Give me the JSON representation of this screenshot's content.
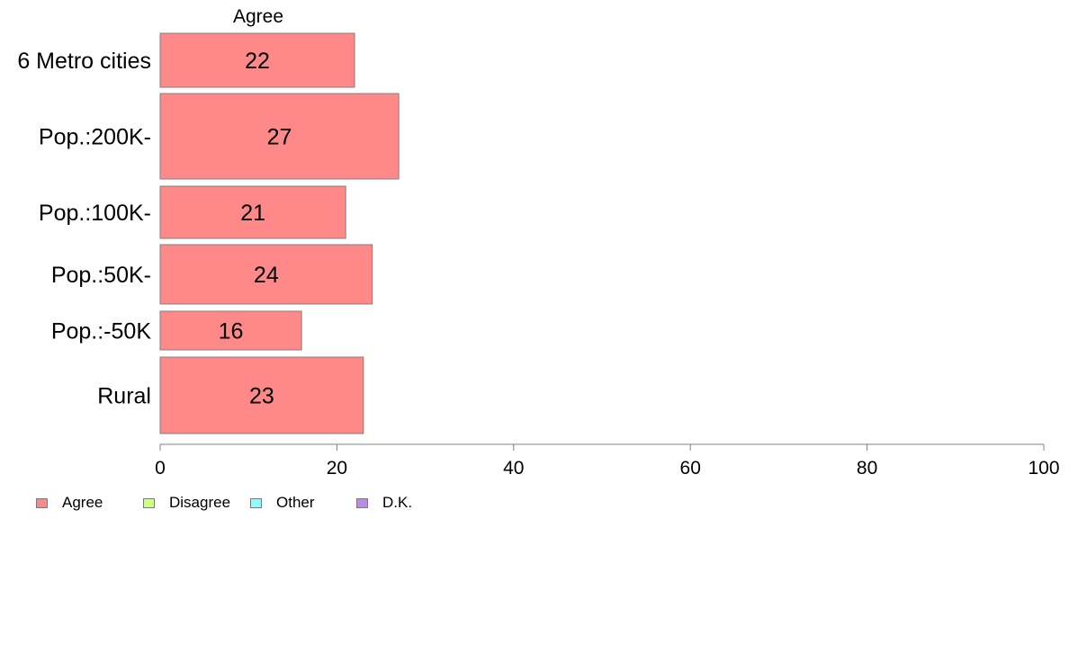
{
  "chart_data": {
    "type": "bar",
    "orientation": "horizontal",
    "column_title": "Agree",
    "categories": [
      "6 Metro cities",
      "Pop.:200K-",
      "Pop.:100K-",
      "Pop.:50K-",
      "Pop.:-50K",
      "Rural"
    ],
    "series": [
      {
        "name": "Agree",
        "values": [
          22,
          27,
          21,
          24,
          16,
          23
        ]
      }
    ],
    "data_labels": [
      "22",
      "27",
      "21",
      "24",
      "16",
      "23"
    ],
    "xlim": [
      0,
      100
    ],
    "x_ticks": [
      0,
      20,
      40,
      60,
      80,
      100
    ],
    "x_tick_labels": [
      "0",
      "20",
      "40",
      "60",
      "80",
      "100"
    ],
    "xlabel": "",
    "ylabel": "",
    "grid": false,
    "legend_placement": "bottom-left",
    "bar_color": "#ff8888",
    "bar_border_color": "#808080"
  },
  "legend": {
    "items": [
      {
        "label": "Agree",
        "color": "#ff8888"
      },
      {
        "label": "Disagree",
        "color": "#ccff88"
      },
      {
        "label": "Other",
        "color": "#88ffff"
      },
      {
        "label": "D.K.",
        "color": "#bb88ee"
      }
    ]
  }
}
